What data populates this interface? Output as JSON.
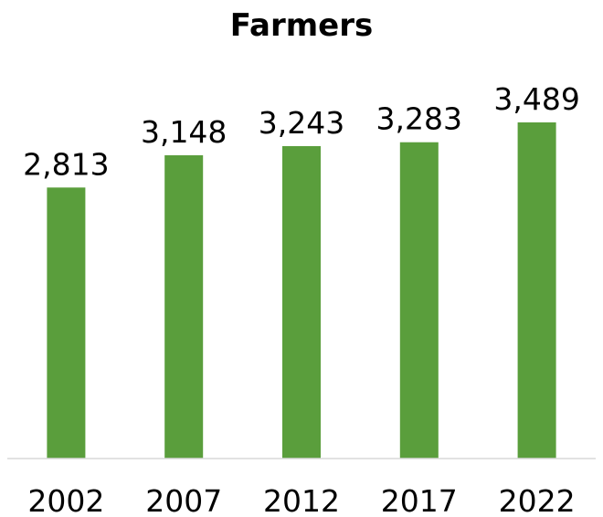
{
  "chart_data": {
    "type": "bar",
    "title": "Farmers",
    "categories": [
      "2002",
      "2007",
      "2012",
      "2017",
      "2022"
    ],
    "values": [
      2813,
      3148,
      3243,
      3283,
      3489
    ],
    "value_labels": [
      "2,813",
      "3,148",
      "3,243",
      "3,283",
      "3,489"
    ],
    "xlabel": "",
    "ylabel": "",
    "ylim": [
      0,
      3489
    ],
    "grid": false,
    "legend": "none",
    "bar_color": "#5a9e3c"
  }
}
